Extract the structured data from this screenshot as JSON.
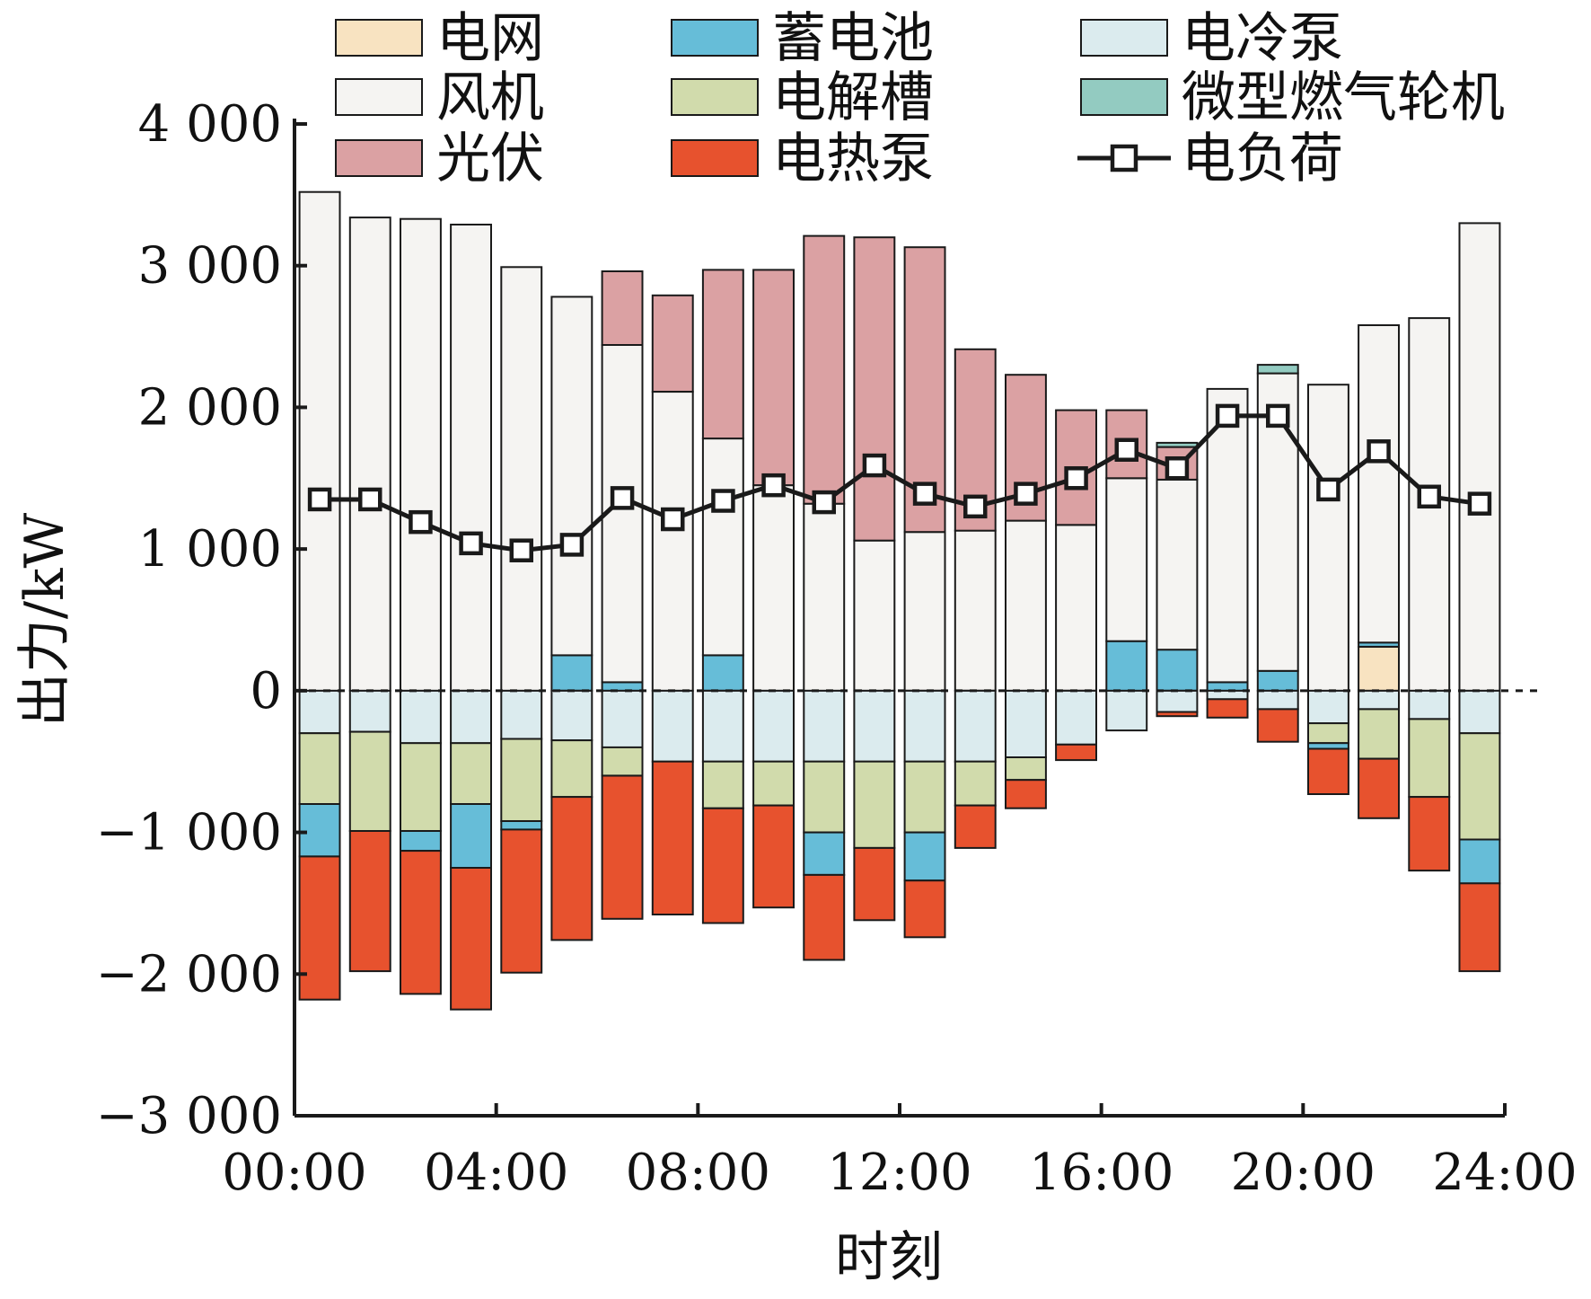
{
  "chart_data": {
    "type": "bar",
    "stacked": true,
    "xlabel": "时刻",
    "ylabel": "出力/kW",
    "ylim": [
      -3000,
      4000
    ],
    "yticks": [
      4000,
      3000,
      2000,
      1000,
      0,
      -1000,
      -2000,
      -3000
    ],
    "ytick_labels": [
      "4 000",
      "3 000",
      "2 000",
      "1 000",
      "0",
      "−1 000",
      "−2 000",
      "−3 000"
    ],
    "xlim": [
      0,
      24
    ],
    "xticks": [
      0,
      4,
      8,
      12,
      16,
      20,
      24
    ],
    "xtick_labels": [
      "00:00",
      "04:00",
      "08:00",
      "12:00",
      "16:00",
      "20:00",
      "24:00"
    ],
    "hours": [
      1,
      2,
      3,
      4,
      5,
      6,
      7,
      8,
      9,
      10,
      11,
      12,
      13,
      14,
      15,
      16,
      17,
      18,
      19,
      20,
      21,
      22,
      23,
      24
    ],
    "zero_line": "dashed",
    "grid": false,
    "legend_position": "top",
    "series": [
      {
        "name": "电网",
        "color": "#f8e3c1",
        "values": [
          0,
          0,
          0,
          0,
          0,
          0,
          0,
          0,
          0,
          0,
          0,
          0,
          0,
          0,
          0,
          0,
          0,
          0,
          0,
          0,
          0,
          310,
          0,
          0
        ]
      },
      {
        "name": "蓄电池",
        "color": "#66bdd8",
        "values": [
          0,
          0,
          0,
          0,
          0,
          250,
          60,
          0,
          250,
          0,
          0,
          0,
          0,
          0,
          0,
          0,
          350,
          290,
          60,
          140,
          0,
          30,
          0,
          0
        ]
      },
      {
        "name": "风机",
        "color": "#f5f4f2",
        "values": [
          3520,
          3340,
          3330,
          3290,
          2990,
          2530,
          2380,
          2110,
          1530,
          1450,
          1320,
          1060,
          1120,
          1130,
          1200,
          1170,
          1150,
          1200,
          2070,
          2100,
          2160,
          2240,
          2630,
          3300
        ]
      },
      {
        "name": "光伏",
        "color": "#dba1a3",
        "values": [
          0,
          0,
          0,
          0,
          0,
          0,
          520,
          680,
          1190,
          1520,
          1890,
          2140,
          2010,
          1280,
          1030,
          810,
          480,
          230,
          0,
          0,
          0,
          0,
          0,
          0
        ]
      },
      {
        "name": "微型燃气轮机",
        "color": "#93cbc1",
        "values": [
          0,
          0,
          0,
          0,
          0,
          0,
          0,
          0,
          0,
          0,
          0,
          0,
          0,
          0,
          0,
          0,
          0,
          30,
          0,
          60,
          0,
          0,
          0,
          0
        ]
      },
      {
        "name": "电冷泵",
        "color": "#dbebee",
        "values": [
          -300,
          -290,
          -370,
          -370,
          -340,
          -350,
          -400,
          -500,
          -500,
          -500,
          -500,
          -500,
          -500,
          -500,
          -470,
          -380,
          -280,
          -150,
          -60,
          -130,
          -230,
          -130,
          -200,
          -300
        ]
      },
      {
        "name": "电解槽",
        "color": "#d1dbac",
        "values": [
          -500,
          -700,
          -620,
          -430,
          -580,
          -400,
          -200,
          0,
          -330,
          -310,
          -500,
          -610,
          -500,
          -310,
          -160,
          0,
          0,
          0,
          0,
          0,
          -140,
          -350,
          -550,
          -750
        ]
      },
      {
        "name": "蓄电池",
        "color": "#66bdd8",
        "values": [
          -370,
          0,
          -140,
          -450,
          -60,
          0,
          0,
          0,
          0,
          0,
          -300,
          0,
          -340,
          0,
          0,
          0,
          0,
          0,
          0,
          0,
          -40,
          0,
          0,
          -310
        ]
      },
      {
        "name": "电热泵",
        "color": "#e7522e",
        "values": [
          -1010,
          -990,
          -1010,
          -1000,
          -1010,
          -1010,
          -1010,
          -1080,
          -810,
          -720,
          -600,
          -510,
          -400,
          -300,
          -200,
          -110,
          0,
          -30,
          -130,
          -230,
          -320,
          -420,
          -520,
          -620
        ]
      }
    ],
    "line": {
      "name": "电负荷",
      "color": "#1a1a1a",
      "marker": "square",
      "values": [
        1350,
        1350,
        1190,
        1040,
        990,
        1030,
        1360,
        1210,
        1340,
        1450,
        1330,
        1590,
        1390,
        1300,
        1390,
        1500,
        1700,
        1570,
        1940,
        1940,
        1420,
        1690,
        1370,
        1320
      ]
    },
    "legend": [
      {
        "label": "电网",
        "color": "#f8e3c1",
        "kind": "patch"
      },
      {
        "label": "蓄电池",
        "color": "#66bdd8",
        "kind": "patch"
      },
      {
        "label": "电冷泵",
        "color": "#dbebee",
        "kind": "patch"
      },
      {
        "label": "风机",
        "color": "#f5f4f2",
        "kind": "patch"
      },
      {
        "label": "电解槽",
        "color": "#d1dbac",
        "kind": "patch"
      },
      {
        "label": "微型燃气轮机",
        "color": "#93cbc1",
        "kind": "patch"
      },
      {
        "label": "光伏",
        "color": "#dba1a3",
        "kind": "patch"
      },
      {
        "label": "电热泵",
        "color": "#e7522e",
        "kind": "patch"
      },
      {
        "label": "电负荷",
        "color": "#1a1a1a",
        "kind": "line-marker"
      }
    ]
  }
}
